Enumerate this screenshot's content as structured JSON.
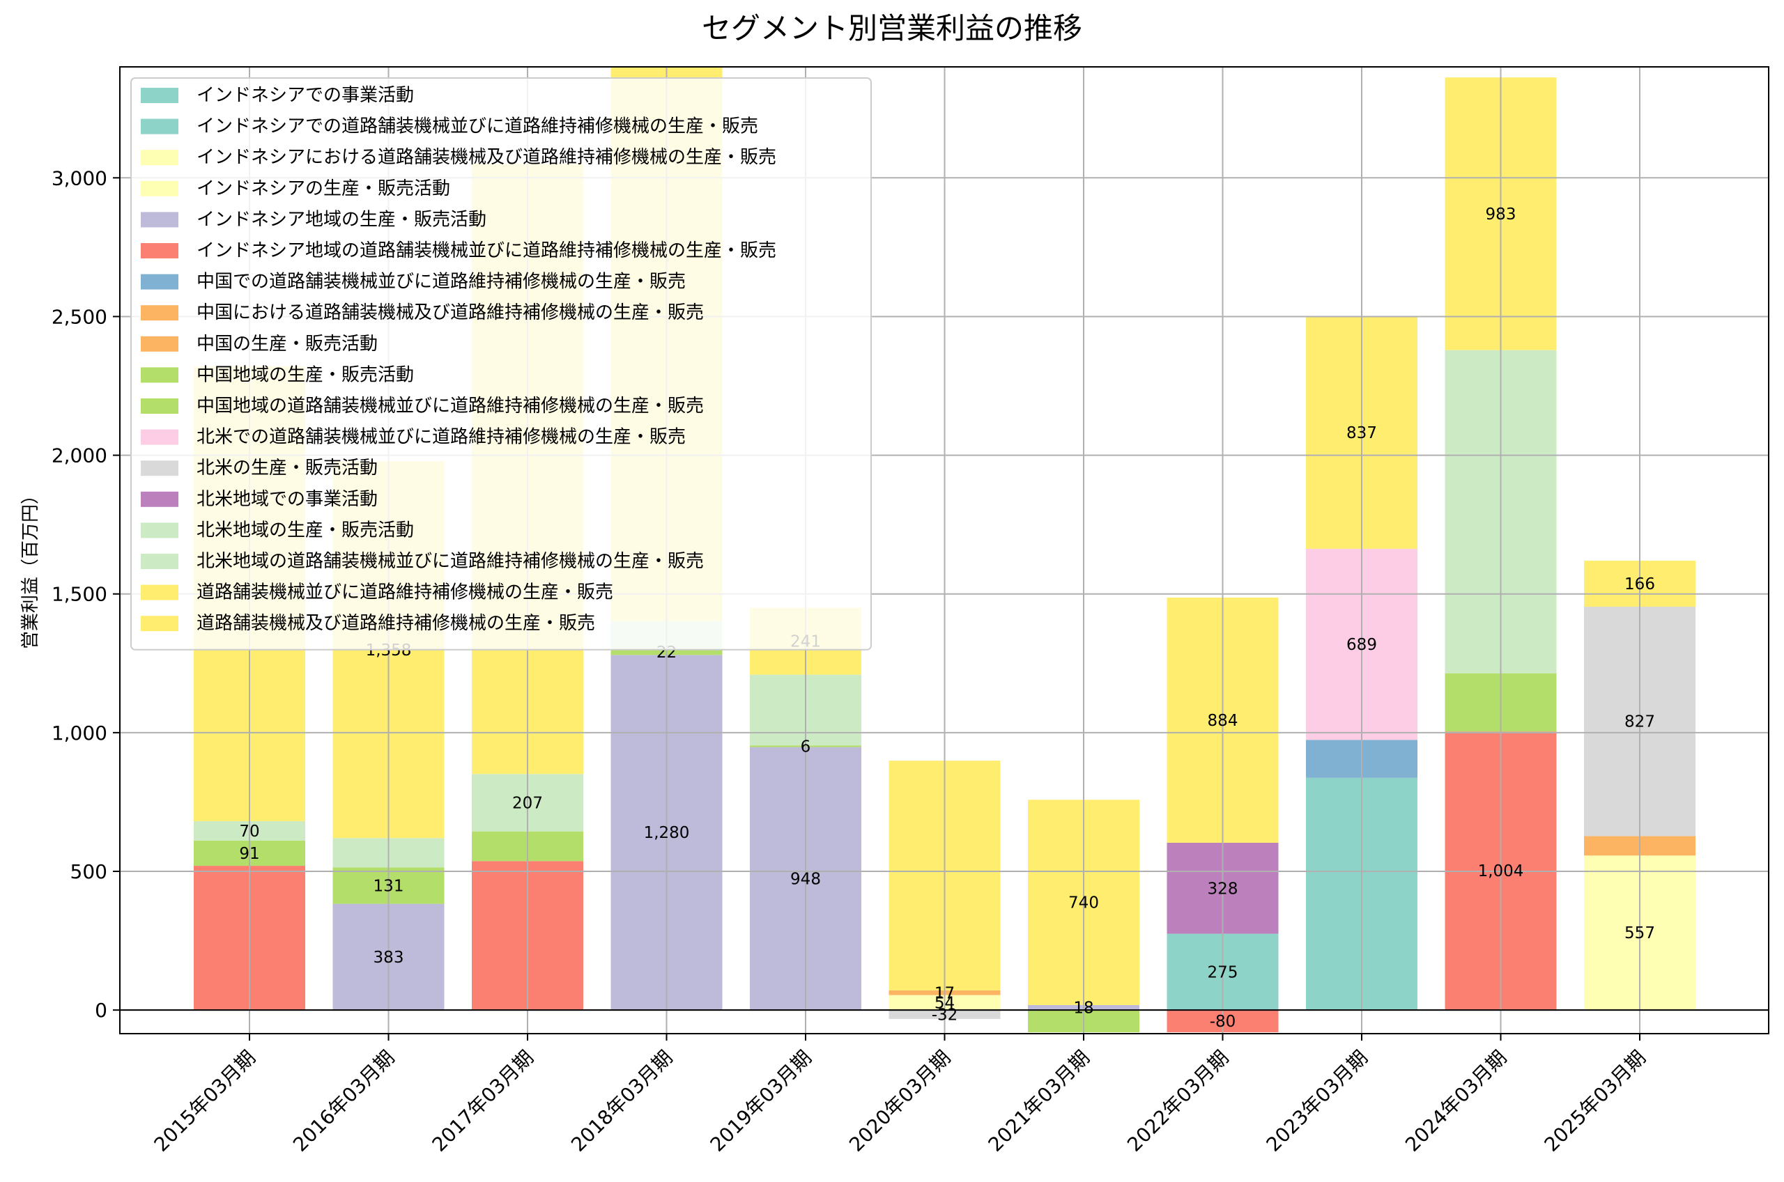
{
  "chart_data": {
    "type": "bar",
    "stacked": true,
    "title": "セグメント別営業利益の推移",
    "xlabel": "",
    "ylabel": "営業利益（百万円）",
    "ylim": [
      -85,
      3400
    ],
    "yticks": [
      0,
      500,
      1000,
      1500,
      2000,
      2500,
      3000
    ],
    "ytick_labels": [
      "0",
      "500",
      "1,000",
      "1,500",
      "2,000",
      "2,500",
      "3,000"
    ],
    "grid": true,
    "legend_position": "top-left",
    "categories": [
      "2015年03月期",
      "2016年03月期",
      "2017年03月期",
      "2018年03月期",
      "2019年03月期",
      "2020年03月期",
      "2021年03月期",
      "2022年03月期",
      "2023年03月期",
      "2024年03月期",
      "2025年03月期"
    ],
    "series": [
      {
        "name": "インドネシアでの事業活動",
        "color": "#8dd3c7",
        "values": [
          0,
          0,
          0,
          0,
          0,
          0,
          0,
          275,
          837,
          0,
          0
        ]
      },
      {
        "name": "インドネシアでの道路舗装機械並びに道路維持補修機械の生産・販売",
        "color": "#8dd3c7",
        "values": [
          0,
          0,
          0,
          0,
          0,
          0,
          0,
          0,
          0,
          0,
          0
        ]
      },
      {
        "name": "インドネシアにおける道路舗装機械及び道路維持補修機械の生産・販売",
        "color": "#ffffb3",
        "values": [
          0,
          0,
          0,
          0,
          0,
          0,
          0,
          0,
          0,
          0,
          557
        ]
      },
      {
        "name": "インドネシアの生産・販売活動",
        "color": "#ffffb3",
        "values": [
          0,
          0,
          0,
          0,
          0,
          54,
          0,
          0,
          0,
          0,
          0
        ]
      },
      {
        "name": "インドネシア地域の生産・販売活動",
        "color": "#bebada",
        "values": [
          0,
          383,
          0,
          1280,
          948,
          0,
          18,
          0,
          0,
          0,
          0
        ]
      },
      {
        "name": "インドネシア地域の道路舗装機械並びに道路維持補修機械の生産・販売",
        "color": "#fb8072",
        "values": [
          520,
          0,
          537,
          0,
          0,
          0,
          0,
          -80,
          0,
          1004,
          0
        ]
      },
      {
        "name": "中国での道路舗装機械並びに道路維持補修機械の生産・販売",
        "color": "#80b1d3",
        "values": [
          0,
          0,
          0,
          0,
          0,
          0,
          0,
          0,
          137,
          0,
          0
        ]
      },
      {
        "name": "中国における道路舗装機械及び道路維持補修機械の生産・販売",
        "color": "#fdb462",
        "values": [
          0,
          0,
          0,
          0,
          0,
          0,
          0,
          0,
          0,
          0,
          70
        ]
      },
      {
        "name": "中国の生産・販売活動",
        "color": "#fdb462",
        "values": [
          0,
          0,
          0,
          0,
          0,
          17,
          0,
          0,
          0,
          0,
          0
        ]
      },
      {
        "name": "中国地域の生産・販売活動",
        "color": "#b3de69",
        "values": [
          0,
          131,
          0,
          22,
          6,
          0,
          -80,
          0,
          0,
          0,
          0
        ]
      },
      {
        "name": "中国地域の道路舗装機械並びに道路維持補修機械の生産・販売",
        "color": "#b3de69",
        "values": [
          91,
          0,
          107,
          0,
          0,
          0,
          0,
          0,
          0,
          210,
          0
        ]
      },
      {
        "name": "北米での道路舗装機械並びに道路維持補修機械の生産・販売",
        "color": "#fccde5",
        "values": [
          0,
          0,
          0,
          0,
          0,
          0,
          0,
          0,
          689,
          0,
          0
        ]
      },
      {
        "name": "北米の生産・販売活動",
        "color": "#d9d9d9",
        "values": [
          0,
          0,
          0,
          0,
          0,
          -32,
          0,
          0,
          0,
          0,
          827
        ]
      },
      {
        "name": "北米地域での事業活動",
        "color": "#bc80bd",
        "values": [
          0,
          0,
          0,
          0,
          0,
          0,
          0,
          328,
          0,
          0,
          0
        ]
      },
      {
        "name": "北米地域の生産・販売活動",
        "color": "#ccebc5",
        "values": [
          0,
          106,
          0,
          100,
          255,
          0,
          0,
          0,
          0,
          0,
          0
        ]
      },
      {
        "name": "北米地域の道路舗装機械並びに道路維持補修機械の生産・販売",
        "color": "#ccebc5",
        "values": [
          70,
          0,
          207,
          0,
          0,
          0,
          0,
          0,
          0,
          1165,
          0
        ]
      },
      {
        "name": "道路舗装機械並びに道路維持補修機械の生産・販売",
        "color": "#ffed6f",
        "values": [
          1640,
          1358,
          2200,
          2000,
          241,
          828,
          740,
          884,
          837,
          983,
          166
        ]
      },
      {
        "name": "道路舗装機械及び道路維持補修機械の生産・販売",
        "color": "#ffed6f",
        "values": [
          0,
          0,
          0,
          0,
          0,
          0,
          0,
          0,
          0,
          0,
          0
        ]
      }
    ],
    "data_labels": [
      {
        "category_index": 0,
        "series_index": 15,
        "text": "70"
      },
      {
        "category_index": 0,
        "series_index": 10,
        "text": "91"
      },
      {
        "category_index": 1,
        "series_index": 9,
        "text": "131"
      },
      {
        "category_index": 1,
        "series_index": 4,
        "text": "383"
      },
      {
        "category_index": 1,
        "series_index": 16,
        "text": "1,358"
      },
      {
        "category_index": 2,
        "series_index": 15,
        "text": "207"
      },
      {
        "category_index": 3,
        "series_index": 9,
        "text": "22"
      },
      {
        "category_index": 3,
        "series_index": 4,
        "text": "1,280"
      },
      {
        "category_index": 4,
        "series_index": 16,
        "text": "241"
      },
      {
        "category_index": 4,
        "series_index": 9,
        "text": "6"
      },
      {
        "category_index": 4,
        "series_index": 4,
        "text": "948"
      },
      {
        "category_index": 5,
        "series_index": 8,
        "text": "17"
      },
      {
        "category_index": 5,
        "series_index": 3,
        "text": "54"
      },
      {
        "category_index": 5,
        "series_index": 12,
        "text": "-32"
      },
      {
        "category_index": 6,
        "series_index": 16,
        "text": "740"
      },
      {
        "category_index": 6,
        "series_index": 4,
        "text": "18"
      },
      {
        "category_index": 7,
        "series_index": 16,
        "text": "884"
      },
      {
        "category_index": 7,
        "series_index": 13,
        "text": "328"
      },
      {
        "category_index": 7,
        "series_index": 0,
        "text": "275"
      },
      {
        "category_index": 7,
        "series_index": 5,
        "text": "-80"
      },
      {
        "category_index": 8,
        "series_index": 16,
        "text": "837"
      },
      {
        "category_index": 8,
        "series_index": 11,
        "text": "689"
      },
      {
        "category_index": 9,
        "series_index": 16,
        "text": "983"
      },
      {
        "category_index": 9,
        "series_index": 5,
        "text": "1,004"
      },
      {
        "category_index": 10,
        "series_index": 16,
        "text": "166"
      },
      {
        "category_index": 10,
        "series_index": 12,
        "text": "827"
      },
      {
        "category_index": 10,
        "series_index": 2,
        "text": "557"
      }
    ]
  }
}
